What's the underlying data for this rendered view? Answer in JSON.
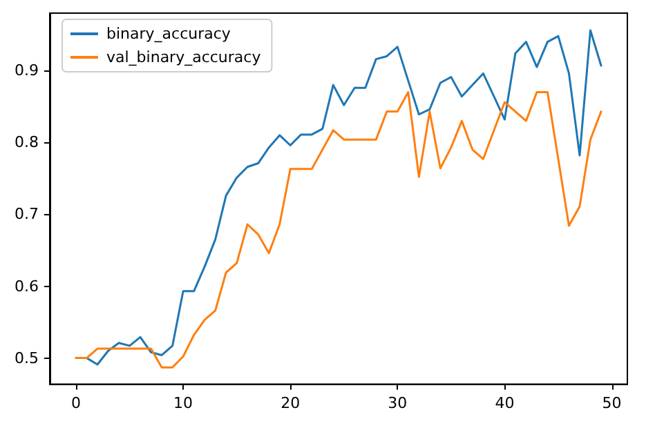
{
  "chart_data": {
    "type": "line",
    "x": [
      0,
      1,
      2,
      3,
      4,
      5,
      6,
      7,
      8,
      9,
      10,
      11,
      12,
      13,
      14,
      15,
      16,
      17,
      18,
      19,
      20,
      21,
      22,
      23,
      24,
      25,
      26,
      27,
      28,
      29,
      30,
      31,
      32,
      33,
      34,
      35,
      36,
      37,
      38,
      39,
      40,
      41,
      42,
      43,
      44,
      45,
      46,
      47,
      48,
      49
    ],
    "series": [
      {
        "name": "binary_accuracy",
        "color": "#1f77b4",
        "values": [
          0.5,
          0.5,
          0.491,
          0.51,
          0.521,
          0.517,
          0.529,
          0.508,
          0.504,
          0.517,
          0.593,
          0.593,
          0.627,
          0.665,
          0.726,
          0.751,
          0.766,
          0.771,
          0.793,
          0.81,
          0.796,
          0.811,
          0.811,
          0.819,
          0.88,
          0.852,
          0.876,
          0.876,
          0.916,
          0.92,
          0.933,
          0.886,
          0.839,
          0.846,
          0.883,
          0.891,
          0.864,
          0.88,
          0.896,
          0.864,
          0.832,
          0.924,
          0.94,
          0.905,
          0.94,
          0.948,
          0.896,
          0.782,
          0.956,
          0.907
        ]
      },
      {
        "name": "val_binary_accuracy",
        "color": "#ff7f0e",
        "values": [
          0.5,
          0.5,
          0.513,
          0.513,
          0.513,
          0.513,
          0.513,
          0.513,
          0.487,
          0.487,
          0.502,
          0.532,
          0.553,
          0.566,
          0.619,
          0.632,
          0.686,
          0.672,
          0.646,
          0.686,
          0.763,
          0.763,
          0.763,
          0.79,
          0.817,
          0.804,
          0.804,
          0.804,
          0.804,
          0.843,
          0.843,
          0.87,
          0.752,
          0.843,
          0.764,
          0.793,
          0.83,
          0.79,
          0.777,
          0.817,
          0.856,
          0.843,
          0.83,
          0.87,
          0.87,
          0.777,
          0.684,
          0.711,
          0.804,
          0.843
        ]
      }
    ],
    "xlim": [
      -2.45,
      51.45
    ],
    "xticks": [
      0,
      10,
      20,
      30,
      40,
      50
    ],
    "ylim": [
      0.4635,
      0.98
    ],
    "yticks": [
      0.5,
      0.6,
      0.7,
      0.8,
      0.9
    ],
    "grid": false,
    "legend": "top left",
    "marker": "none",
    "line_style": "solid"
  }
}
